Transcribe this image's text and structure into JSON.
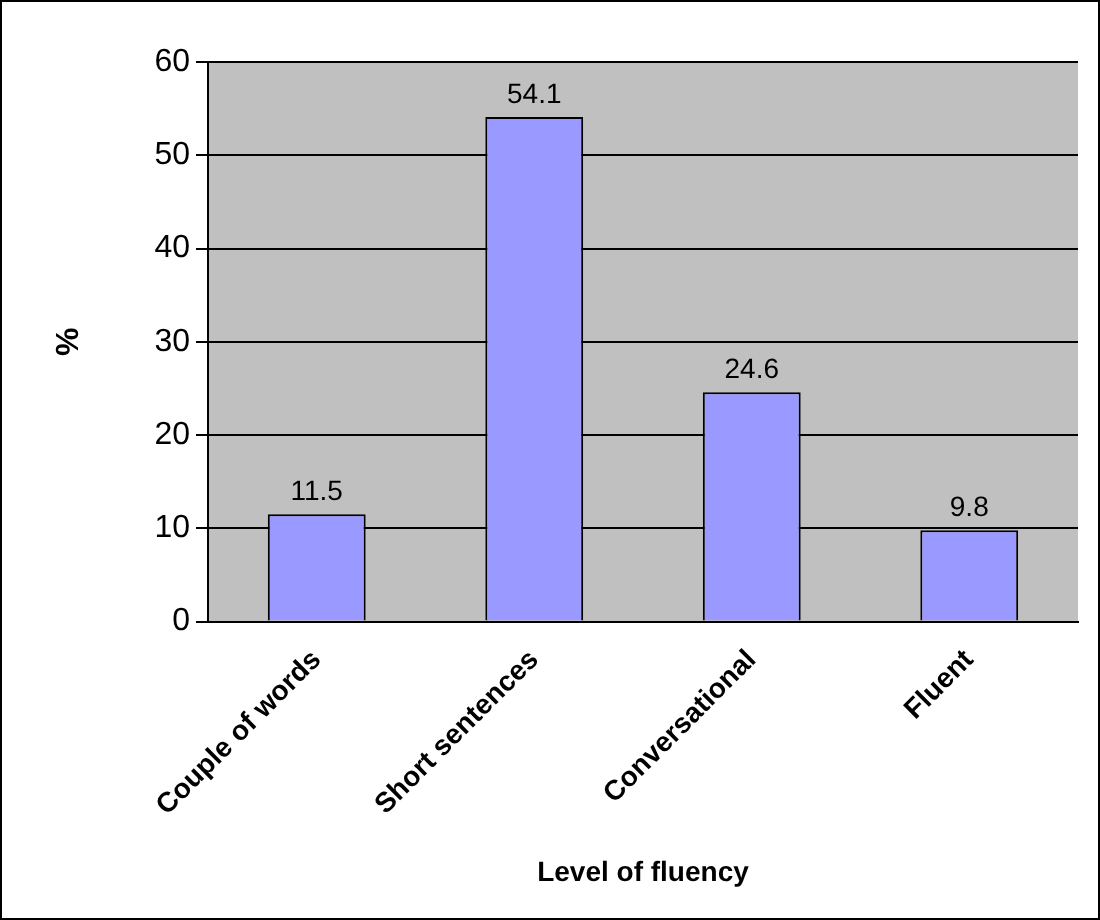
{
  "chart_data": {
    "type": "bar",
    "xlabel": "Level of fluency",
    "ylabel": "%",
    "categories": [
      "Couple of words",
      "Short sentences",
      "Conversational",
      "Fluent"
    ],
    "values": [
      11.5,
      54.1,
      24.6,
      9.8
    ],
    "color": "#9999ff",
    "ylim": [
      0,
      60
    ],
    "yticks": [
      0,
      10,
      20,
      30,
      40,
      50,
      60
    ],
    "grid": "y",
    "data_labels": true,
    "legend": false
  }
}
